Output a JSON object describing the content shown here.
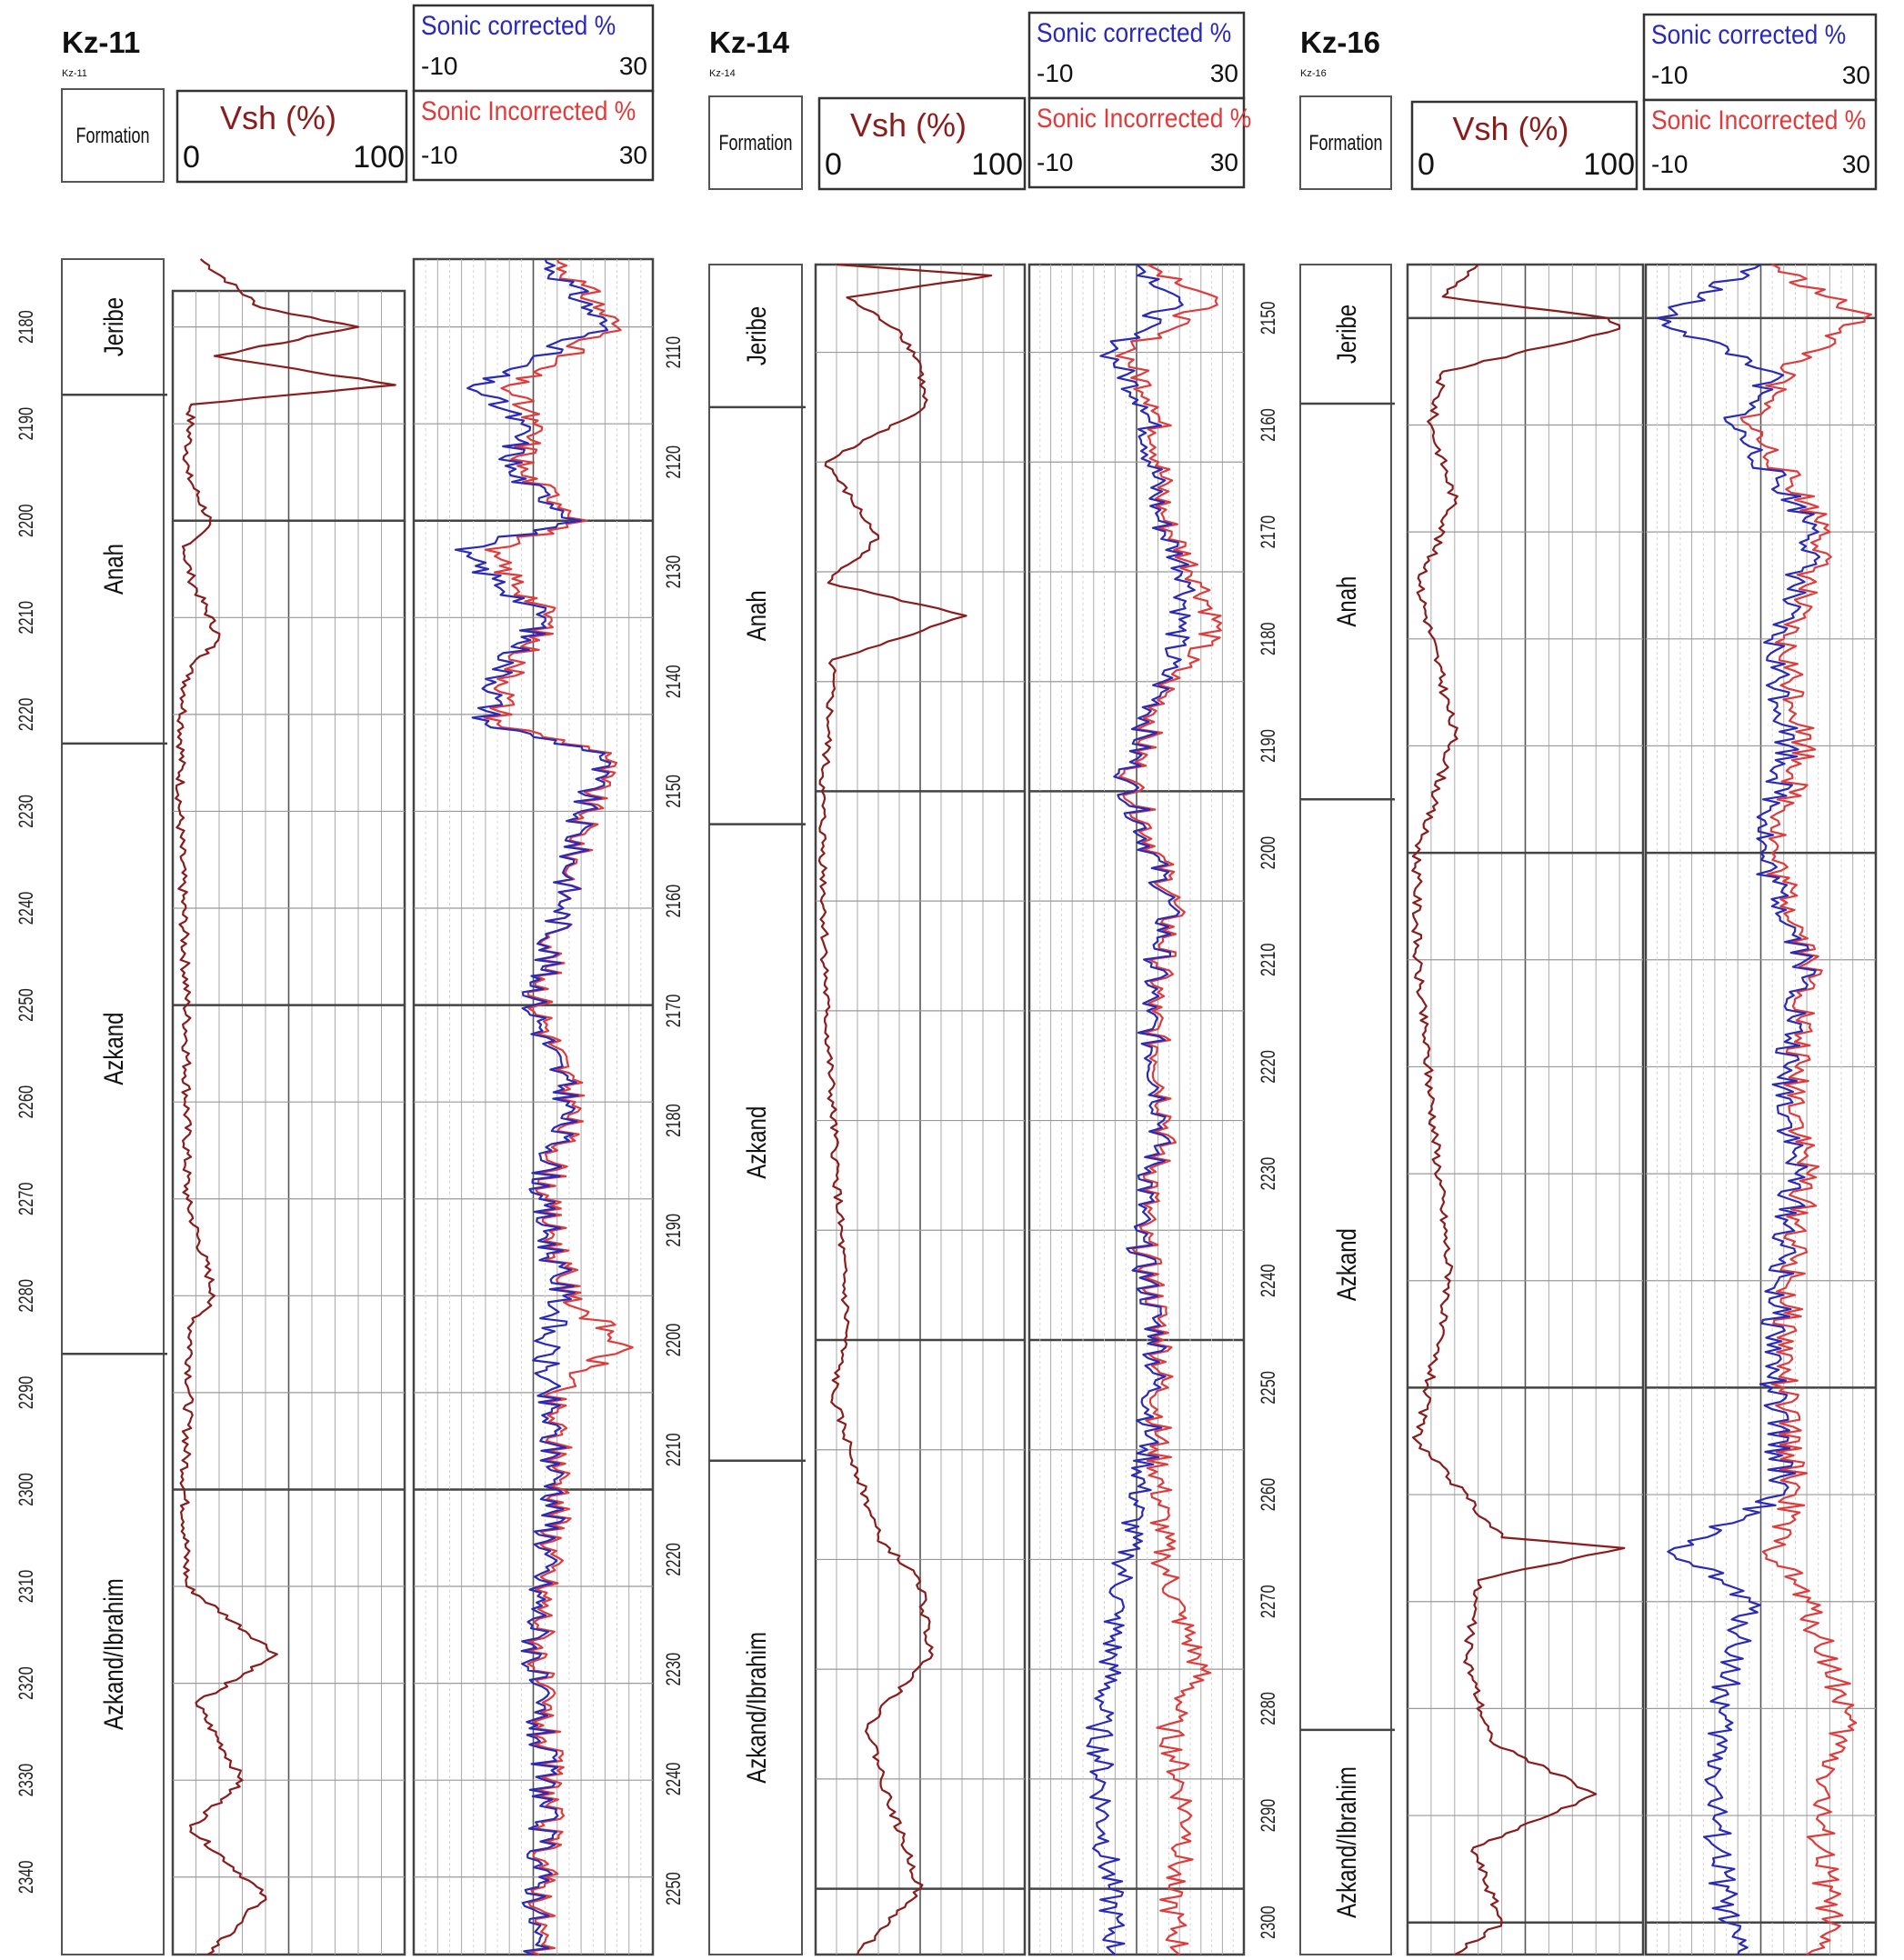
{
  "colors": {
    "vsh": "#8b1c1c",
    "sonic_corrected": "#2a2ab8",
    "sonic_uncorrected": "#e03b3b"
  },
  "chart_data": [
    {
      "type": "line",
      "title": "Kz-11",
      "subtitle": "Kz-11",
      "formation_header": "Formation",
      "depth_axis": {
        "ylim": [
          2173,
          2348
        ],
        "major_step": 10
      },
      "formations": [
        {
          "name": "Jeribe",
          "top": 2173,
          "base": 2187
        },
        {
          "name": "Anah",
          "top": 2187,
          "base": 2223
        },
        {
          "name": "Azkand",
          "top": 2223,
          "base": 2286
        },
        {
          "name": "Azkand/Ibrahim",
          "top": 2286,
          "base": 2348
        }
      ],
      "tracks": {
        "vsh": {
          "label": "Vsh (%)",
          "min_label": "0",
          "max_label": "100",
          "xlim": [
            0,
            100
          ],
          "series": [
            {
              "name": "Vsh (%)",
              "depth": [
                2173,
                2178,
                2180,
                2183,
                2186,
                2188,
                2195,
                2200,
                2203,
                2206,
                2212,
                2216,
                2221,
                2230,
                2250,
                2270,
                2280,
                2283,
                2290,
                2300,
                2310,
                2317,
                2322,
                2330,
                2335,
                2342,
                2348
              ],
              "values": [
                12,
                38,
                80,
                18,
                96,
                8,
                6,
                16,
                5,
                8,
                20,
                6,
                4,
                3,
                6,
                6,
                18,
                8,
                7,
                5,
                6,
                45,
                10,
                30,
                8,
                40,
                15
              ]
            }
          ]
        },
        "sonic": {
          "xlim": [
            -10,
            30
          ],
          "series": [
            {
              "name": "Sonic corrected %",
              "min_label": "-10",
              "max_label": "30",
              "depth": [
                2173,
                2180,
                2186,
                2190,
                2195,
                2200,
                2203,
                2210,
                2215,
                2221,
                2224,
                2230,
                2240,
                2250,
                2260,
                2270,
                2280,
                2285,
                2290,
                2300,
                2310,
                2320,
                2330,
                2340,
                2348
              ],
              "values": [
                12,
                22,
                0,
                8,
                6,
                18,
                -3,
                12,
                5,
                2,
                22,
                18,
                15,
                10,
                16,
                11,
                15,
                12,
                12,
                14,
                11,
                10,
                12,
                11,
                10
              ]
            },
            {
              "name": "Sonic Incorrected %",
              "min_label": "-10",
              "max_label": "30",
              "depth": [
                2173,
                2180,
                2186,
                2190,
                2195,
                2200,
                2203,
                2210,
                2215,
                2221,
                2224,
                2230,
                2240,
                2250,
                2260,
                2270,
                2280,
                2285,
                2290,
                2300,
                2310,
                2320,
                2330,
                2340,
                2348
              ],
              "values": [
                14,
                24,
                6,
                10,
                8,
                19,
                2,
                13,
                7,
                4,
                23,
                19,
                15,
                11,
                17,
                12,
                16,
                25,
                13,
                15,
                12,
                11,
                13,
                12,
                11
              ]
            }
          ]
        }
      }
    },
    {
      "type": "line",
      "title": "Kz-14",
      "subtitle": "Kz-14",
      "formation_header": "Formation",
      "depth_axis": {
        "ylim": [
          2102,
          2256
        ],
        "major_step": 10
      },
      "formations": [
        {
          "name": "Jeribe",
          "top": 2102,
          "base": 2115
        },
        {
          "name": "Anah",
          "top": 2115,
          "base": 2153
        },
        {
          "name": "Azkand",
          "top": 2153,
          "base": 2211
        },
        {
          "name": "Azkand/Ibrahim",
          "top": 2211,
          "base": 2256
        }
      ],
      "tracks": {
        "vsh": {
          "label": "Vsh (%)",
          "min_label": "0",
          "max_label": "100",
          "xlim": [
            0,
            100
          ],
          "series": [
            {
              "name": "Vsh (%)",
              "depth": [
                2102,
                2103,
                2105,
                2108,
                2111,
                2115,
                2120,
                2127,
                2131,
                2134,
                2138,
                2145,
                2150,
                2170,
                2185,
                2199,
                2205,
                2212,
                2218,
                2222,
                2229,
                2235,
                2242,
                2250,
                2256
              ],
              "values": [
                10,
                84,
                15,
                40,
                50,
                52,
                5,
                30,
                6,
                72,
                8,
                6,
                3,
                5,
                10,
                15,
                8,
                20,
                30,
                50,
                55,
                25,
                35,
                50,
                20
              ]
            }
          ]
        },
        "sonic": {
          "xlim": [
            -10,
            30
          ],
          "series": [
            {
              "name": "Sonic corrected %",
              "min_label": "-10",
              "max_label": "30",
              "depth": [
                2102,
                2105,
                2110,
                2115,
                2125,
                2131,
                2135,
                2140,
                2149,
                2160,
                2170,
                2180,
                2190,
                2200,
                2210,
                2220,
                2225,
                2230,
                2235,
                2245,
                2250,
                2256
              ],
              "values": [
                10,
                18,
                5,
                12,
                14,
                20,
                18,
                15,
                8,
                16,
                12,
                15,
                10,
                14,
                12,
                8,
                6,
                5,
                3,
                4,
                5,
                6
              ]
            },
            {
              "name": "Sonic Incorrected %",
              "min_label": "-10",
              "max_label": "30",
              "depth": [
                2102,
                2105,
                2110,
                2115,
                2125,
                2131,
                2135,
                2140,
                2149,
                2160,
                2170,
                2180,
                2190,
                2200,
                2210,
                2220,
                2225,
                2230,
                2235,
                2245,
                2250,
                2256
              ],
              "values": [
                12,
                25,
                8,
                14,
                15,
                22,
                25,
                16,
                9,
                17,
                13,
                16,
                11,
                15,
                14,
                15,
                18,
                22,
                16,
                20,
                16,
                18
              ]
            }
          ]
        }
      }
    },
    {
      "type": "line",
      "title": "Kz-16",
      "subtitle": "Kz-16",
      "formation_header": "Formation",
      "depth_axis": {
        "ylim": [
          2145,
          2303
        ],
        "major_step": 10
      },
      "formations": [
        {
          "name": "Jeribe",
          "top": 2145,
          "base": 2158
        },
        {
          "name": "Anah",
          "top": 2158,
          "base": 2195
        },
        {
          "name": "Azkand",
          "top": 2195,
          "base": 2282
        },
        {
          "name": "Azkand/Ibrahim",
          "top": 2282,
          "base": 2303
        }
      ],
      "tracks": {
        "vsh": {
          "label": "Vsh (%)",
          "min_label": "0",
          "max_label": "100",
          "xlim": [
            0,
            100
          ],
          "series": [
            {
              "name": "Vsh (%)",
              "depth": [
                2145,
                2148,
                2150,
                2151,
                2155,
                2160,
                2167,
                2175,
                2189,
                2200,
                2210,
                2240,
                2255,
                2264,
                2265,
                2268,
                2275,
                2283,
                2288,
                2293,
                2300,
                2303
              ],
              "values": [
                30,
                15,
                85,
                90,
                15,
                10,
                20,
                5,
                20,
                4,
                4,
                18,
                4,
                40,
                92,
                30,
                25,
                35,
                80,
                28,
                40,
                20
              ]
            }
          ]
        },
        "sonic": {
          "xlim": [
            -10,
            30
          ],
          "series": [
            {
              "name": "Sonic corrected %",
              "min_label": "-10",
              "max_label": "30",
              "depth": [
                2145,
                2150,
                2155,
                2160,
                2170,
                2180,
                2190,
                2200,
                2210,
                2220,
                2230,
                2240,
                2250,
                2260,
                2265,
                2270,
                2280,
                2290,
                2300,
                2303
              ],
              "values": [
                10,
                -8,
                12,
                5,
                20,
                12,
                15,
                10,
                18,
                14,
                16,
                13,
                12,
                14,
                -5,
                8,
                3,
                2,
                4,
                6
              ]
            },
            {
              "name": "Sonic Incorrected %",
              "min_label": "-10",
              "max_label": "30",
              "depth": [
                2145,
                2150,
                2155,
                2160,
                2170,
                2180,
                2190,
                2200,
                2210,
                2220,
                2230,
                2240,
                2250,
                2260,
                2265,
                2270,
                2280,
                2290,
                2300,
                2303
              ],
              "values": [
                12,
                28,
                14,
                8,
                22,
                14,
                18,
                12,
                19,
                16,
                18,
                15,
                14,
                16,
                12,
                18,
                25,
                20,
                22,
                18
              ]
            }
          ]
        }
      }
    }
  ]
}
